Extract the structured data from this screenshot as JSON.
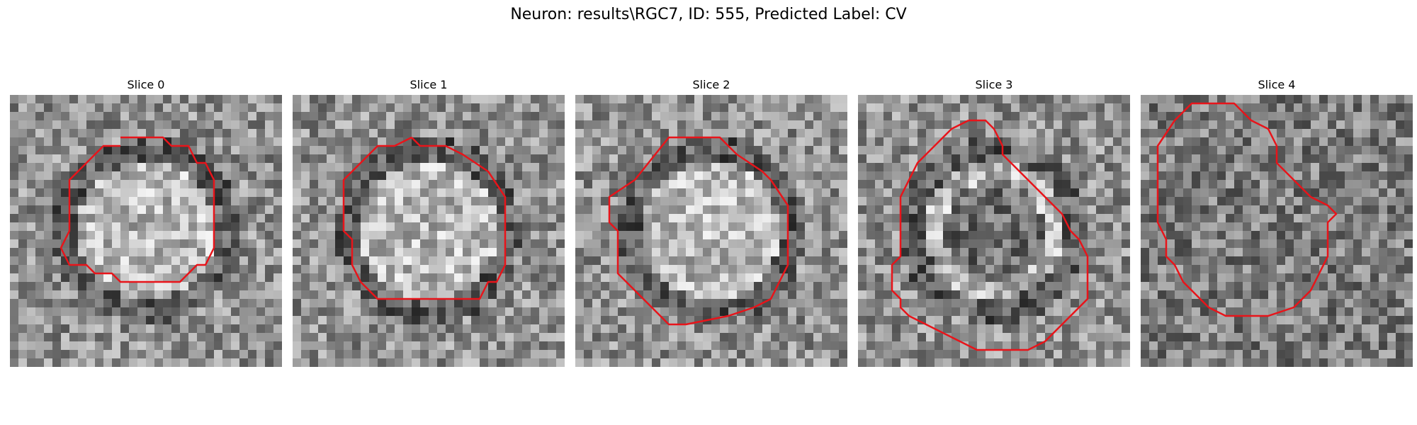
{
  "figure": {
    "title": "Neuron: results\\RGC7, ID: 555, Predicted Label: CV"
  },
  "slices": [
    {
      "title": "Slice 0",
      "contour": [
        [
          13,
          5
        ],
        [
          18,
          5
        ],
        [
          19,
          6
        ],
        [
          21,
          6
        ],
        [
          22,
          8
        ],
        [
          23,
          8
        ],
        [
          24,
          10
        ],
        [
          24,
          18
        ],
        [
          23,
          20
        ],
        [
          22,
          20
        ],
        [
          20,
          22
        ],
        [
          13,
          22
        ],
        [
          12,
          21
        ],
        [
          10,
          21
        ],
        [
          9,
          20
        ],
        [
          7,
          20
        ],
        [
          6,
          18
        ],
        [
          7,
          16
        ],
        [
          7,
          10
        ],
        [
          8,
          9
        ],
        [
          10,
          7
        ],
        [
          11,
          6
        ],
        [
          13,
          6
        ]
      ]
    },
    {
      "title": "Slice 1",
      "contour": [
        [
          14,
          5
        ],
        [
          15,
          6
        ],
        [
          18,
          6
        ],
        [
          20,
          7
        ],
        [
          23,
          9
        ],
        [
          25,
          12
        ],
        [
          25,
          20
        ],
        [
          24,
          22
        ],
        [
          23,
          22
        ],
        [
          22,
          24
        ],
        [
          10,
          24
        ],
        [
          8,
          22
        ],
        [
          7,
          20
        ],
        [
          7,
          17
        ],
        [
          6,
          16
        ],
        [
          6,
          10
        ],
        [
          8,
          8
        ],
        [
          10,
          6
        ],
        [
          12,
          6
        ],
        [
          14,
          5
        ]
      ]
    },
    {
      "title": "Slice 2",
      "contour": [
        [
          13,
          5
        ],
        [
          17,
          5
        ],
        [
          19,
          7
        ],
        [
          22,
          9
        ],
        [
          23,
          10
        ],
        [
          25,
          13
        ],
        [
          25,
          20
        ],
        [
          24,
          22
        ],
        [
          23,
          24
        ],
        [
          21,
          25
        ],
        [
          18,
          26
        ],
        [
          13,
          27
        ],
        [
          11,
          27
        ],
        [
          10,
          26
        ],
        [
          8,
          24
        ],
        [
          6,
          22
        ],
        [
          5,
          21
        ],
        [
          5,
          16
        ],
        [
          4,
          15
        ],
        [
          4,
          12
        ],
        [
          7,
          10
        ],
        [
          11,
          5
        ],
        [
          13,
          5
        ]
      ]
    },
    {
      "title": "Slice 3",
      "contour": [
        [
          13,
          3
        ],
        [
          15,
          3
        ],
        [
          16,
          4
        ],
        [
          17,
          6
        ],
        [
          17,
          7
        ],
        [
          18,
          8
        ],
        [
          19,
          9
        ],
        [
          20,
          10
        ],
        [
          21,
          11
        ],
        [
          22,
          12
        ],
        [
          24,
          14
        ],
        [
          25,
          16
        ],
        [
          26,
          17
        ],
        [
          27,
          19
        ],
        [
          27,
          24
        ],
        [
          25,
          26
        ],
        [
          24,
          27
        ],
        [
          22,
          29
        ],
        [
          20,
          30
        ],
        [
          14,
          30
        ],
        [
          12,
          29
        ],
        [
          10,
          28
        ],
        [
          8,
          27
        ],
        [
          6,
          26
        ],
        [
          5,
          25
        ],
        [
          5,
          24
        ],
        [
          4,
          23
        ],
        [
          4,
          20
        ],
        [
          5,
          19
        ],
        [
          5,
          12
        ],
        [
          6,
          10
        ],
        [
          7,
          8
        ],
        [
          9,
          6
        ],
        [
          11,
          4
        ],
        [
          13,
          3
        ]
      ]
    },
    {
      "title": "Slice 4",
      "contour": [
        [
          9,
          1
        ],
        [
          11,
          1
        ],
        [
          13,
          3
        ],
        [
          15,
          4
        ],
        [
          16,
          6
        ],
        [
          16,
          8
        ],
        [
          18,
          10
        ],
        [
          20,
          12
        ],
        [
          22,
          13
        ],
        [
          23,
          14
        ],
        [
          22,
          15
        ],
        [
          22,
          19
        ],
        [
          21,
          21
        ],
        [
          20,
          23
        ],
        [
          18,
          25
        ],
        [
          15,
          26
        ],
        [
          10,
          26
        ],
        [
          8,
          25
        ],
        [
          6,
          23
        ],
        [
          5,
          22
        ],
        [
          4,
          20
        ],
        [
          3,
          19
        ],
        [
          3,
          17
        ],
        [
          2,
          15
        ],
        [
          2,
          6
        ],
        [
          4,
          3
        ],
        [
          6,
          1
        ],
        [
          9,
          1
        ]
      ]
    }
  ]
}
